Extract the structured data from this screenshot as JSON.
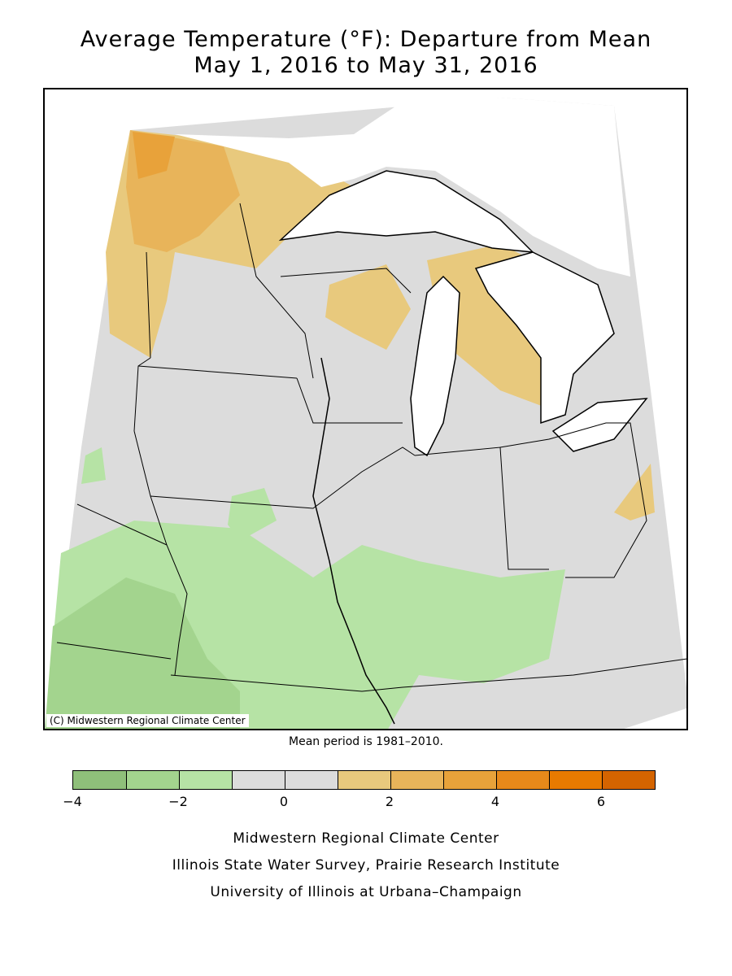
{
  "title_line1": "Average Temperature (°F): Departure from Mean",
  "title_line2": "May 1, 2016 to May 31, 2016",
  "copyright": "(C) Midwestern Regional Climate Center",
  "mean_period": "Mean period is 1981–2010.",
  "legend": {
    "colors": [
      "#8fbf7a",
      "#a3d48e",
      "#b6e3a5",
      "#dcdcdc",
      "#dcdcdc",
      "#e8c97d",
      "#e8b45a",
      "#e8a23a",
      "#e8891a",
      "#e87a00",
      "#d46400"
    ],
    "tick_labels": [
      "−4",
      "−2",
      "0",
      "2",
      "4",
      "6"
    ]
  },
  "credits": [
    "Midwestern Regional Climate Center",
    "Illinois State Water Survey, Prairie Research Institute",
    "University of Illinois at Urbana–Champaign"
  ],
  "map_colors": {
    "neutral": "#dcdcdc",
    "cool1": "#b6e3a5",
    "cool2": "#a3d48e",
    "warm1": "#e8c97d",
    "warm2": "#e8b45a",
    "warm3": "#e8a23a",
    "lake": "#ffffff"
  }
}
